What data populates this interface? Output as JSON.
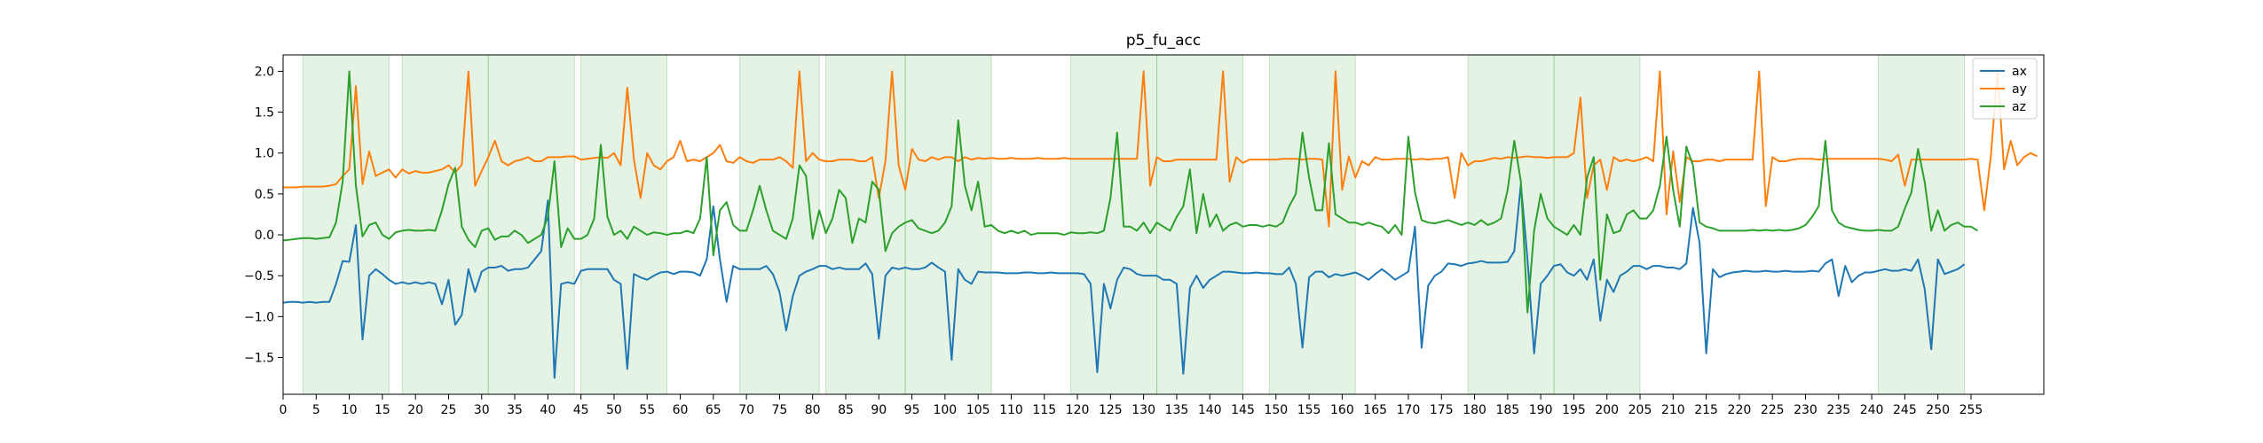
{
  "chart_data": {
    "type": "line",
    "title": "p5_fu_acc",
    "xlabel": "",
    "ylabel": "",
    "xlim": [
      0,
      266
    ],
    "ylim": [
      -1.95,
      2.2
    ],
    "xticks": [
      0,
      5,
      10,
      15,
      20,
      25,
      30,
      35,
      40,
      45,
      50,
      55,
      60,
      65,
      70,
      75,
      80,
      85,
      90,
      95,
      100,
      105,
      110,
      115,
      120,
      125,
      130,
      135,
      140,
      145,
      150,
      155,
      160,
      165,
      170,
      175,
      180,
      185,
      190,
      195,
      200,
      205,
      210,
      215,
      220,
      225,
      230,
      235,
      240,
      245,
      250,
      255
    ],
    "yticks": [
      -1.5,
      -1.0,
      -0.5,
      0.0,
      0.5,
      1.0,
      1.5,
      2.0
    ],
    "ytick_labels": [
      "−1.5",
      "−1.0",
      "−0.5",
      "0.0",
      "0.5",
      "1.0",
      "1.5",
      "2.0"
    ],
    "legend_position": "top-right",
    "shaded_regions": [
      [
        3,
        16
      ],
      [
        18,
        31
      ],
      [
        31,
        44
      ],
      [
        45,
        58
      ],
      [
        69,
        81
      ],
      [
        82,
        94
      ],
      [
        94,
        107
      ],
      [
        119,
        132
      ],
      [
        132,
        145
      ],
      [
        149,
        162
      ],
      [
        179,
        192
      ],
      [
        192,
        205
      ],
      [
        241,
        254
      ]
    ],
    "region_color": "#2ca02c",
    "series": [
      {
        "name": "ax",
        "color": "#1f77b4",
        "values": [
          -0.83,
          -0.82,
          -0.82,
          -0.83,
          -0.82,
          -0.83,
          -0.82,
          -0.82,
          -0.6,
          -0.32,
          -0.33,
          0.12,
          -1.28,
          -0.5,
          -0.42,
          -0.48,
          -0.55,
          -0.6,
          -0.58,
          -0.6,
          -0.58,
          -0.6,
          -0.58,
          -0.6,
          -0.85,
          -0.55,
          -1.1,
          -0.98,
          -0.42,
          -0.7,
          -0.45,
          -0.4,
          -0.4,
          -0.38,
          -0.44,
          -0.42,
          -0.42,
          -0.4,
          -0.3,
          -0.2,
          0.42,
          -1.75,
          -0.6,
          -0.58,
          -0.6,
          -0.44,
          -0.42,
          -0.42,
          -0.42,
          -0.42,
          -0.55,
          -0.6,
          -1.64,
          -0.48,
          -0.52,
          -0.55,
          -0.5,
          -0.46,
          -0.45,
          -0.48,
          -0.45,
          -0.45,
          -0.46,
          -0.5,
          -0.3,
          0.35,
          -0.3,
          -0.82,
          -0.38,
          -0.42,
          -0.42,
          -0.42,
          -0.42,
          -0.38,
          -0.48,
          -0.7,
          -1.17,
          -0.75,
          -0.5,
          -0.45,
          -0.42,
          -0.38,
          -0.38,
          -0.42,
          -0.4,
          -0.42,
          -0.42,
          -0.42,
          -0.35,
          -0.48,
          -1.27,
          -0.5,
          -0.4,
          -0.42,
          -0.4,
          -0.42,
          -0.42,
          -0.4,
          -0.34,
          -0.4,
          -0.45,
          -1.53,
          -0.42,
          -0.55,
          -0.6,
          -0.45,
          -0.46,
          -0.46,
          -0.46,
          -0.47,
          -0.47,
          -0.47,
          -0.46,
          -0.46,
          -0.47,
          -0.47,
          -0.46,
          -0.47,
          -0.47,
          -0.47,
          -0.47,
          -0.48,
          -0.6,
          -1.68,
          -0.6,
          -0.9,
          -0.55,
          -0.4,
          -0.42,
          -0.48,
          -0.5,
          -0.5,
          -0.5,
          -0.55,
          -0.55,
          -0.6,
          -1.7,
          -0.65,
          -0.5,
          -0.65,
          -0.55,
          -0.5,
          -0.45,
          -0.45,
          -0.46,
          -0.47,
          -0.47,
          -0.46,
          -0.47,
          -0.47,
          -0.48,
          -0.48,
          -0.4,
          -0.6,
          -1.38,
          -0.52,
          -0.45,
          -0.45,
          -0.52,
          -0.48,
          -0.5,
          -0.48,
          -0.46,
          -0.5,
          -0.55,
          -0.48,
          -0.42,
          -0.48,
          -0.55,
          -0.5,
          -0.45,
          0.1,
          -1.38,
          -0.62,
          -0.5,
          -0.45,
          -0.35,
          -0.36,
          -0.38,
          -0.35,
          -0.34,
          -0.32,
          -0.34,
          -0.34,
          -0.34,
          -0.33,
          -0.2,
          0.62,
          -0.3,
          -1.45,
          -0.6,
          -0.5,
          -0.38,
          -0.36,
          -0.46,
          -0.5,
          -0.42,
          -0.55,
          -0.3,
          -1.05,
          -0.55,
          -0.7,
          -0.5,
          -0.45,
          -0.38,
          -0.38,
          -0.42,
          -0.38,
          -0.38,
          -0.4,
          -0.4,
          -0.42,
          -0.35,
          0.33,
          -0.1,
          -1.45,
          -0.42,
          -0.52,
          -0.48,
          -0.46,
          -0.45,
          -0.44,
          -0.45,
          -0.45,
          -0.44,
          -0.45,
          -0.45,
          -0.44,
          -0.45,
          -0.45,
          -0.45,
          -0.44,
          -0.45,
          -0.35,
          -0.3,
          -0.75,
          -0.38,
          -0.58,
          -0.5,
          -0.46,
          -0.46,
          -0.44,
          -0.42,
          -0.44,
          -0.44,
          -0.42,
          -0.44,
          -0.3,
          -0.66,
          -1.4,
          -0.3,
          -0.48,
          -0.45,
          -0.42,
          -0.36
        ]
      },
      {
        "name": "ay",
        "color": "#ff7f0e",
        "values": [
          0.58,
          0.58,
          0.58,
          0.59,
          0.59,
          0.59,
          0.59,
          0.6,
          0.62,
          0.72,
          0.8,
          1.82,
          0.62,
          1.02,
          0.72,
          0.76,
          0.8,
          0.7,
          0.8,
          0.75,
          0.78,
          0.76,
          0.76,
          0.78,
          0.8,
          0.85,
          0.76,
          0.86,
          2.0,
          0.6,
          0.78,
          0.95,
          1.15,
          0.9,
          0.85,
          0.9,
          0.92,
          0.95,
          0.9,
          0.9,
          0.95,
          0.95,
          0.95,
          0.96,
          0.96,
          0.92,
          0.93,
          0.94,
          0.95,
          0.94,
          1.0,
          0.85,
          1.8,
          0.92,
          0.45,
          1.0,
          0.85,
          0.8,
          0.9,
          0.95,
          1.15,
          0.9,
          0.92,
          0.9,
          0.95,
          1.0,
          1.1,
          0.9,
          0.88,
          0.95,
          0.9,
          0.88,
          0.92,
          0.92,
          0.92,
          0.95,
          0.9,
          0.82,
          2.0,
          0.9,
          1.0,
          0.92,
          0.9,
          0.9,
          0.92,
          0.92,
          0.92,
          0.9,
          0.9,
          0.95,
          0.45,
          0.9,
          2.0,
          0.85,
          0.55,
          1.05,
          0.92,
          0.9,
          0.95,
          0.92,
          0.95,
          0.95,
          0.9,
          0.95,
          0.92,
          0.94,
          0.93,
          0.94,
          0.93,
          0.93,
          0.94,
          0.93,
          0.93,
          0.93,
          0.94,
          0.93,
          0.93,
          0.93,
          0.94,
          0.93,
          0.93,
          0.93,
          0.93,
          0.93,
          0.93,
          0.93,
          0.93,
          0.93,
          0.93,
          0.93,
          2.0,
          0.6,
          0.95,
          0.9,
          0.9,
          0.92,
          0.92,
          0.92,
          0.92,
          0.92,
          0.92,
          0.92,
          2.0,
          0.65,
          0.95,
          0.88,
          0.92,
          0.92,
          0.92,
          0.92,
          0.92,
          0.93,
          0.93,
          0.93,
          0.92,
          0.93,
          0.93,
          0.92,
          0.1,
          2.0,
          0.55,
          0.96,
          0.7,
          0.9,
          0.85,
          0.95,
          0.92,
          0.92,
          0.93,
          0.93,
          0.93,
          0.92,
          0.93,
          0.92,
          0.93,
          0.93,
          0.95,
          0.45,
          1.0,
          0.85,
          0.9,
          0.9,
          0.92,
          0.94,
          0.93,
          0.95,
          0.94,
          0.95,
          0.96,
          0.95,
          0.95,
          0.94,
          0.95,
          0.95,
          0.95,
          1.0,
          1.68,
          0.45,
          0.85,
          0.92,
          0.55,
          0.95,
          0.9,
          0.92,
          0.9,
          0.92,
          0.95,
          0.9,
          2.0,
          0.25,
          1.02,
          0.4,
          0.95,
          0.9,
          0.9,
          0.92,
          0.92,
          0.9,
          0.92,
          0.92,
          0.92,
          0.92,
          0.92,
          2.0,
          0.35,
          0.95,
          0.9,
          0.9,
          0.92,
          0.93,
          0.93,
          0.93,
          0.92,
          0.93,
          0.93,
          0.93,
          0.93,
          0.93,
          0.93,
          0.93,
          0.93,
          0.93,
          0.92,
          0.9,
          0.98,
          0.6,
          0.92,
          0.92,
          0.92,
          0.92,
          0.92,
          0.92,
          0.92,
          0.92,
          0.92,
          0.93,
          0.92,
          0.3,
          0.96,
          2.0,
          0.8,
          1.15,
          0.85,
          0.95,
          1.0,
          0.96
        ]
      },
      {
        "name": "az",
        "color": "#2ca02c",
        "values": [
          -0.07,
          -0.06,
          -0.05,
          -0.04,
          -0.04,
          -0.05,
          -0.04,
          -0.03,
          0.15,
          0.65,
          2.0,
          0.6,
          -0.02,
          0.12,
          0.15,
          0.0,
          -0.05,
          0.03,
          0.05,
          0.06,
          0.05,
          0.05,
          0.06,
          0.05,
          0.3,
          0.62,
          0.82,
          0.1,
          -0.06,
          -0.15,
          0.05,
          0.08,
          -0.06,
          -0.02,
          -0.02,
          0.05,
          0.0,
          -0.1,
          -0.05,
          0.0,
          0.22,
          0.9,
          -0.15,
          0.08,
          -0.05,
          -0.05,
          0.0,
          0.2,
          1.1,
          0.22,
          0.0,
          0.05,
          -0.05,
          0.1,
          0.05,
          0.0,
          0.03,
          0.02,
          0.0,
          0.02,
          0.02,
          0.05,
          0.02,
          0.2,
          0.95,
          -0.25,
          0.3,
          0.4,
          0.12,
          0.05,
          0.05,
          0.3,
          0.6,
          0.3,
          0.05,
          0.0,
          -0.05,
          0.2,
          0.85,
          0.72,
          -0.05,
          0.3,
          0.02,
          0.2,
          0.55,
          0.45,
          -0.1,
          0.2,
          0.15,
          0.65,
          0.55,
          -0.2,
          0.02,
          0.1,
          0.15,
          0.18,
          0.08,
          0.05,
          0.02,
          0.05,
          0.15,
          0.35,
          1.4,
          0.6,
          0.3,
          0.65,
          0.1,
          0.12,
          0.05,
          0.02,
          0.05,
          0.02,
          0.05,
          0.0,
          0.02,
          0.02,
          0.02,
          0.02,
          0.0,
          0.03,
          0.02,
          0.02,
          0.03,
          0.02,
          0.05,
          0.45,
          1.25,
          0.1,
          0.1,
          0.05,
          0.15,
          0.02,
          0.15,
          0.1,
          0.05,
          0.22,
          0.35,
          0.8,
          0.02,
          0.5,
          0.1,
          0.25,
          0.05,
          0.12,
          0.15,
          0.1,
          0.12,
          0.12,
          0.1,
          0.12,
          0.1,
          0.15,
          0.35,
          0.5,
          1.25,
          0.7,
          0.3,
          0.3,
          1.12,
          0.25,
          0.2,
          0.15,
          0.15,
          0.12,
          0.15,
          0.12,
          0.1,
          0.02,
          0.12,
          0.0,
          1.2,
          0.52,
          0.18,
          0.15,
          0.14,
          0.16,
          0.18,
          0.15,
          0.12,
          0.15,
          0.12,
          0.18,
          0.12,
          0.15,
          0.2,
          0.55,
          1.15,
          0.65,
          -0.95,
          0.05,
          0.5,
          0.2,
          0.1,
          0.05,
          0.0,
          0.12,
          0.0,
          0.7,
          0.95,
          -0.55,
          0.25,
          0.02,
          0.05,
          0.25,
          0.3,
          0.2,
          0.2,
          0.3,
          0.6,
          1.2,
          0.55,
          0.1,
          1.08,
          0.85,
          0.15,
          0.1,
          0.08,
          0.05,
          0.05,
          0.05,
          0.05,
          0.05,
          0.06,
          0.05,
          0.06,
          0.05,
          0.06,
          0.05,
          0.06,
          0.08,
          0.12,
          0.22,
          0.35,
          1.15,
          0.3,
          0.15,
          0.1,
          0.08,
          0.06,
          0.05,
          0.05,
          0.06,
          0.05,
          0.05,
          0.1,
          0.32,
          0.52,
          1.05,
          0.65,
          0.05,
          0.3,
          0.05,
          0.12,
          0.15,
          0.1,
          0.1,
          0.05
        ]
      }
    ]
  }
}
